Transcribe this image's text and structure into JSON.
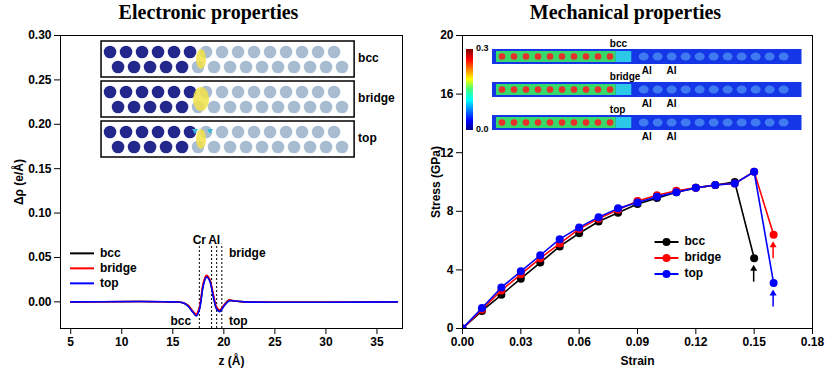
{
  "chart_data": [
    {
      "type": "line",
      "title": "Electronic properties",
      "x_label": "z (Å)",
      "y_label": "Δρ (e/Å)",
      "x": [
        5,
        15,
        16,
        16.5,
        17,
        17.3,
        17.6,
        18,
        18.3,
        18.6,
        19,
        19.3,
        19.6,
        20,
        20.5,
        21,
        22,
        37
      ],
      "series": [
        {
          "name": "bcc",
          "color": "#000000",
          "values": [
            0,
            0,
            -0.001,
            -0.004,
            -0.012,
            -0.015,
            -0.008,
            0.02,
            0.029,
            0.025,
            0.005,
            -0.008,
            -0.01,
            -0.004,
            0.002,
            0.001,
            0,
            0
          ]
        },
        {
          "name": "bridge",
          "color": "#ff0000",
          "values": [
            0,
            0,
            -0.001,
            -0.004,
            -0.011,
            -0.014,
            -0.006,
            0.022,
            0.03,
            0.026,
            0.007,
            -0.006,
            -0.009,
            -0.004,
            0.002,
            0.001,
            0,
            0
          ]
        },
        {
          "name": "top",
          "color": "#0000ff",
          "values": [
            0,
            0,
            -0.001,
            -0.005,
            -0.012,
            -0.016,
            -0.009,
            0.019,
            0.028,
            0.024,
            0.004,
            -0.008,
            -0.011,
            -0.005,
            0.001,
            0.001,
            0,
            0
          ]
        }
      ],
      "xlim": [
        4,
        37.5
      ],
      "ylim": [
        -0.03,
        0.3
      ],
      "xticks": [
        5,
        10,
        15,
        20,
        25,
        30,
        35
      ],
      "yticks": [
        {
          "value": 0,
          "label": "0.00"
        },
        0.05,
        {
          "value": 0.1,
          "label": "0.10"
        },
        0.15,
        {
          "value": 0.2,
          "label": "0.20"
        },
        0.25,
        {
          "value": 0.3,
          "label": "0.30"
        }
      ],
      "grid": false,
      "legend": "bottom-left",
      "annotations": [
        {
          "text": "Cr",
          "x": 17.6,
          "y": 0.065
        },
        {
          "text": "Al",
          "x": 19.05,
          "y": 0.065
        },
        {
          "text": "bridge",
          "x": 20.3,
          "y": 0.055
        },
        {
          "text": "bcc",
          "x": 17.0,
          "y": -0.022
        },
        {
          "text": "top",
          "x": 20.3,
          "y": -0.022
        }
      ],
      "reference_lines": [
        17.6,
        18.8,
        19.3,
        19.8
      ],
      "inset": {
        "labels": [
          "bcc",
          "bridge",
          "top"
        ]
      }
    },
    {
      "type": "line",
      "title": "Mechanical properties",
      "x_label": "Strain",
      "y_label": "Stress (GPa)",
      "x": [
        0,
        0.01,
        0.02,
        0.03,
        0.04,
        0.05,
        0.06,
        0.07,
        0.08,
        0.09,
        0.1,
        0.11,
        0.12,
        0.13,
        0.14,
        0.15,
        0.16
      ],
      "series": [
        {
          "name": "bcc",
          "color": "#000000",
          "marker": "circle",
          "values": [
            0,
            1.2,
            2.3,
            3.4,
            4.5,
            5.6,
            6.5,
            7.3,
            7.9,
            8.5,
            8.9,
            9.3,
            9.6,
            9.8,
            10.0,
            4.8,
            null
          ]
        },
        {
          "name": "bridge",
          "color": "#ff0000",
          "marker": "circle",
          "values": [
            0,
            1.3,
            2.6,
            3.7,
            4.8,
            5.8,
            6.8,
            7.5,
            8.1,
            8.7,
            9.1,
            9.4,
            9.6,
            9.8,
            9.9,
            10.7,
            6.4
          ]
        },
        {
          "name": "top",
          "color": "#0000ff",
          "marker": "circle",
          "values": [
            0,
            1.4,
            2.8,
            3.9,
            5.0,
            6.1,
            6.9,
            7.6,
            8.2,
            8.6,
            9.0,
            9.3,
            9.6,
            9.8,
            9.9,
            10.7,
            3.1
          ]
        }
      ],
      "xlim": [
        0,
        0.18
      ],
      "ylim": [
        0,
        20
      ],
      "xticks": [
        {
          "value": 0,
          "label": "0.00"
        },
        0.03,
        0.06,
        0.09,
        0.12,
        0.15,
        0.18
      ],
      "yticks": [
        0,
        4,
        8,
        12,
        16,
        20
      ],
      "grid": false,
      "legend": "bottom-right",
      "inset": {
        "labels": [
          "bcc",
          "bridge",
          "top"
        ],
        "sublabels": [
          "Al",
          "Al"
        ],
        "colorbar": {
          "range": [
            0,
            0.3
          ],
          "ticks": [
            {
              "value": 0,
              "label": "0.0"
            },
            0.3
          ]
        }
      }
    }
  ]
}
